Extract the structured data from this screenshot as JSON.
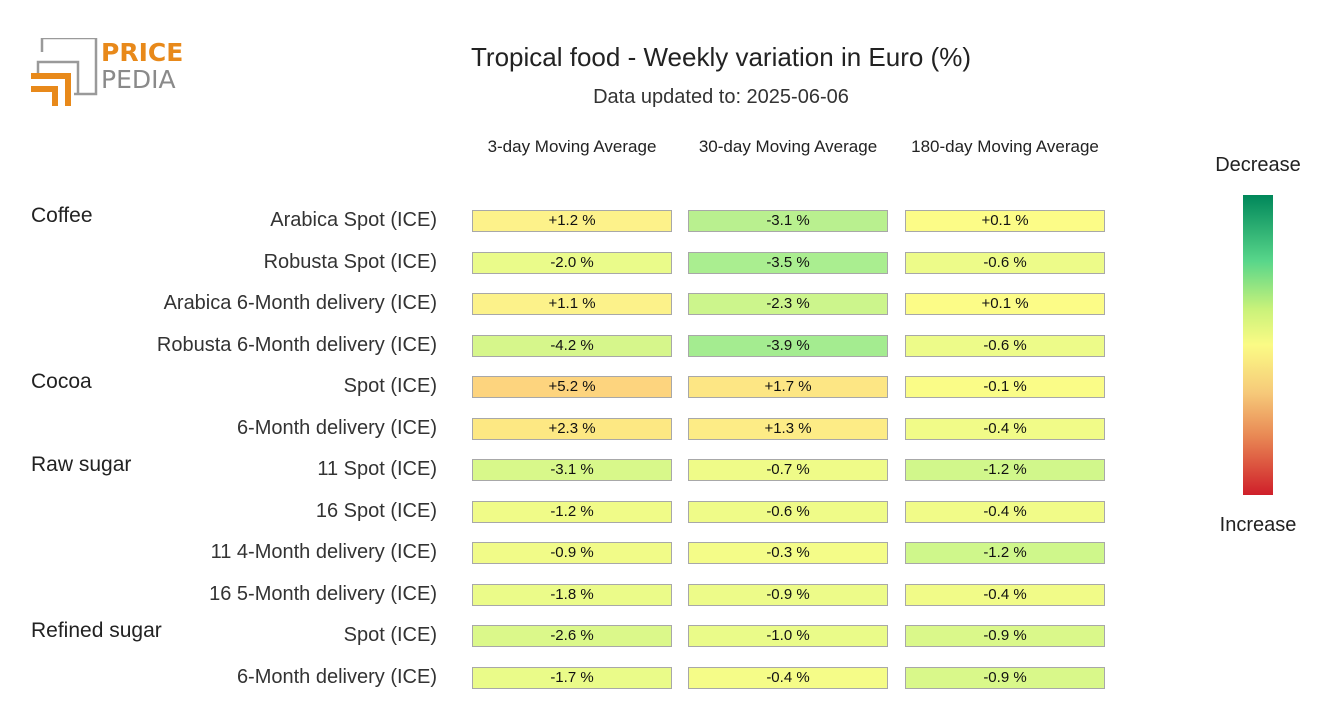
{
  "brand": {
    "line1": "PRICE",
    "line2": "PEDIA"
  },
  "chart_data": {
    "type": "heatmap",
    "title": "Tropical food - Weekly variation in Euro (%)",
    "subtitle": "Data updated to: 2025-06-06",
    "columns": [
      "3-day Moving Average",
      "30-day Moving Average",
      "180-day Moving Average"
    ],
    "groups": [
      {
        "name": "Coffee",
        "rows": [
          {
            "label": "Arabica Spot (ICE)",
            "values": [
              "+1.2 %",
              "-3.1 %",
              "+0.1 %"
            ]
          },
          {
            "label": "Robusta Spot (ICE)",
            "values": [
              "-2.0 %",
              "-3.5 %",
              "-0.6 %"
            ]
          },
          {
            "label": "Arabica 6-Month delivery (ICE)",
            "values": [
              "+1.1 %",
              "-2.3 %",
              "+0.1 %"
            ]
          },
          {
            "label": "Robusta 6-Month delivery (ICE)",
            "values": [
              "-4.2 %",
              "-3.9 %",
              "-0.6 %"
            ]
          }
        ]
      },
      {
        "name": "Cocoa",
        "rows": [
          {
            "label": "Spot (ICE)",
            "values": [
              "+5.2 %",
              "+1.7 %",
              "-0.1 %"
            ]
          },
          {
            "label": "6-Month delivery (ICE)",
            "values": [
              "+2.3 %",
              "+1.3 %",
              "-0.4 %"
            ]
          }
        ]
      },
      {
        "name": "Raw sugar",
        "rows": [
          {
            "label": "11 Spot (ICE)",
            "values": [
              "-3.1 %",
              "-0.7 %",
              "-1.2 %"
            ]
          },
          {
            "label": "16 Spot (ICE)",
            "values": [
              "-1.2 %",
              "-0.6 %",
              "-0.4 %"
            ]
          },
          {
            "label": "11 4-Month delivery (ICE)",
            "values": [
              "-0.9 %",
              "-0.3 %",
              "-1.2 %"
            ]
          },
          {
            "label": "16 5-Month delivery (ICE)",
            "values": [
              "-1.8 %",
              "-0.9 %",
              "-0.4 %"
            ]
          }
        ]
      },
      {
        "name": "Refined sugar",
        "rows": [
          {
            "label": "Spot (ICE)",
            "values": [
              "-2.6 %",
              "-1.0 %",
              "-0.9 %"
            ]
          },
          {
            "label": "6-Month delivery (ICE)",
            "values": [
              "-1.7 %",
              "-0.4 %",
              "-0.9 %"
            ]
          }
        ]
      }
    ],
    "legend": {
      "top": "Decrease",
      "bottom": "Increase"
    },
    "colors": {
      "cell_colors": [
        [
          "#fdf28a",
          "#b9f08f",
          "#fcfc87"
        ],
        [
          "#eafb8a",
          "#aaee90",
          "#edfb89"
        ],
        [
          "#fcf28a",
          "#ccf58c",
          "#fcfc87"
        ],
        [
          "#d6f68b",
          "#a4ec90",
          "#edfb89"
        ],
        [
          "#fdd47e",
          "#fde684",
          "#fafc87"
        ],
        [
          "#fde883",
          "#fdec86",
          "#f1fb88"
        ],
        [
          "#d8f88a",
          "#effb88",
          "#d1f78b"
        ],
        [
          "#f0fb88",
          "#effb88",
          "#f1fb88"
        ],
        [
          "#f1fb88",
          "#f4fc88",
          "#cff78b"
        ],
        [
          "#ebfb89",
          "#edfb89",
          "#f1fb88"
        ],
        [
          "#dbf88a",
          "#eafb89",
          "#daf88a"
        ],
        [
          "#eafb89",
          "#f5fc88",
          "#d9f88a"
        ]
      ]
    }
  }
}
